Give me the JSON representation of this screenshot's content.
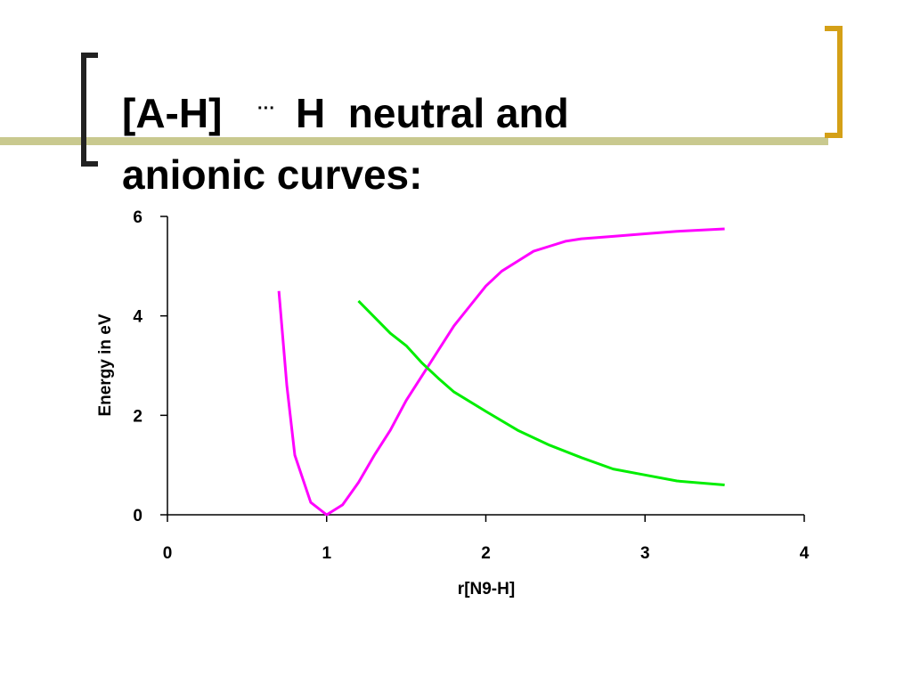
{
  "chart_data": {
    "type": "line",
    "title": [
      "[A-H]",
      "···",
      "H  neutral and",
      "anionic curves:"
    ],
    "x_label": "r[N9-H]",
    "y_label": "Energy in eV",
    "xlim": [
      0,
      4
    ],
    "xticks": [
      0,
      1,
      2,
      3,
      4
    ],
    "ylim": [
      0,
      6
    ],
    "yticks": [
      0,
      2,
      4,
      6
    ],
    "series": [
      {
        "color": "#ff00ff",
        "x": [
          0.7,
          0.75,
          0.8,
          0.9,
          1.0,
          1.1,
          1.2,
          1.3,
          1.4,
          1.5,
          1.6,
          1.7,
          1.8,
          1.9,
          2.0,
          2.1,
          2.2,
          2.3,
          2.4,
          2.5,
          2.6,
          2.8,
          3.0,
          3.2,
          3.5
        ],
        "values": [
          4.5,
          2.6,
          1.2,
          0.25,
          0,
          0.2,
          0.65,
          1.2,
          1.7,
          2.3,
          2.8,
          3.3,
          3.8,
          4.2,
          4.6,
          4.9,
          5.1,
          5.3,
          5.4,
          5.5,
          5.55,
          5.6,
          5.65,
          5.7,
          5.75
        ]
      },
      {
        "color": "#00ee00",
        "x": [
          1.2,
          1.4,
          1.5,
          1.6,
          1.7,
          1.8,
          2.0,
          2.2,
          2.4,
          2.6,
          2.8,
          3.0,
          3.2,
          3.5
        ],
        "values": [
          4.3,
          3.65,
          3.4,
          3.05,
          2.75,
          2.47,
          2.08,
          1.7,
          1.4,
          1.15,
          0.92,
          0.8,
          0.68,
          0.6
        ]
      }
    ]
  }
}
